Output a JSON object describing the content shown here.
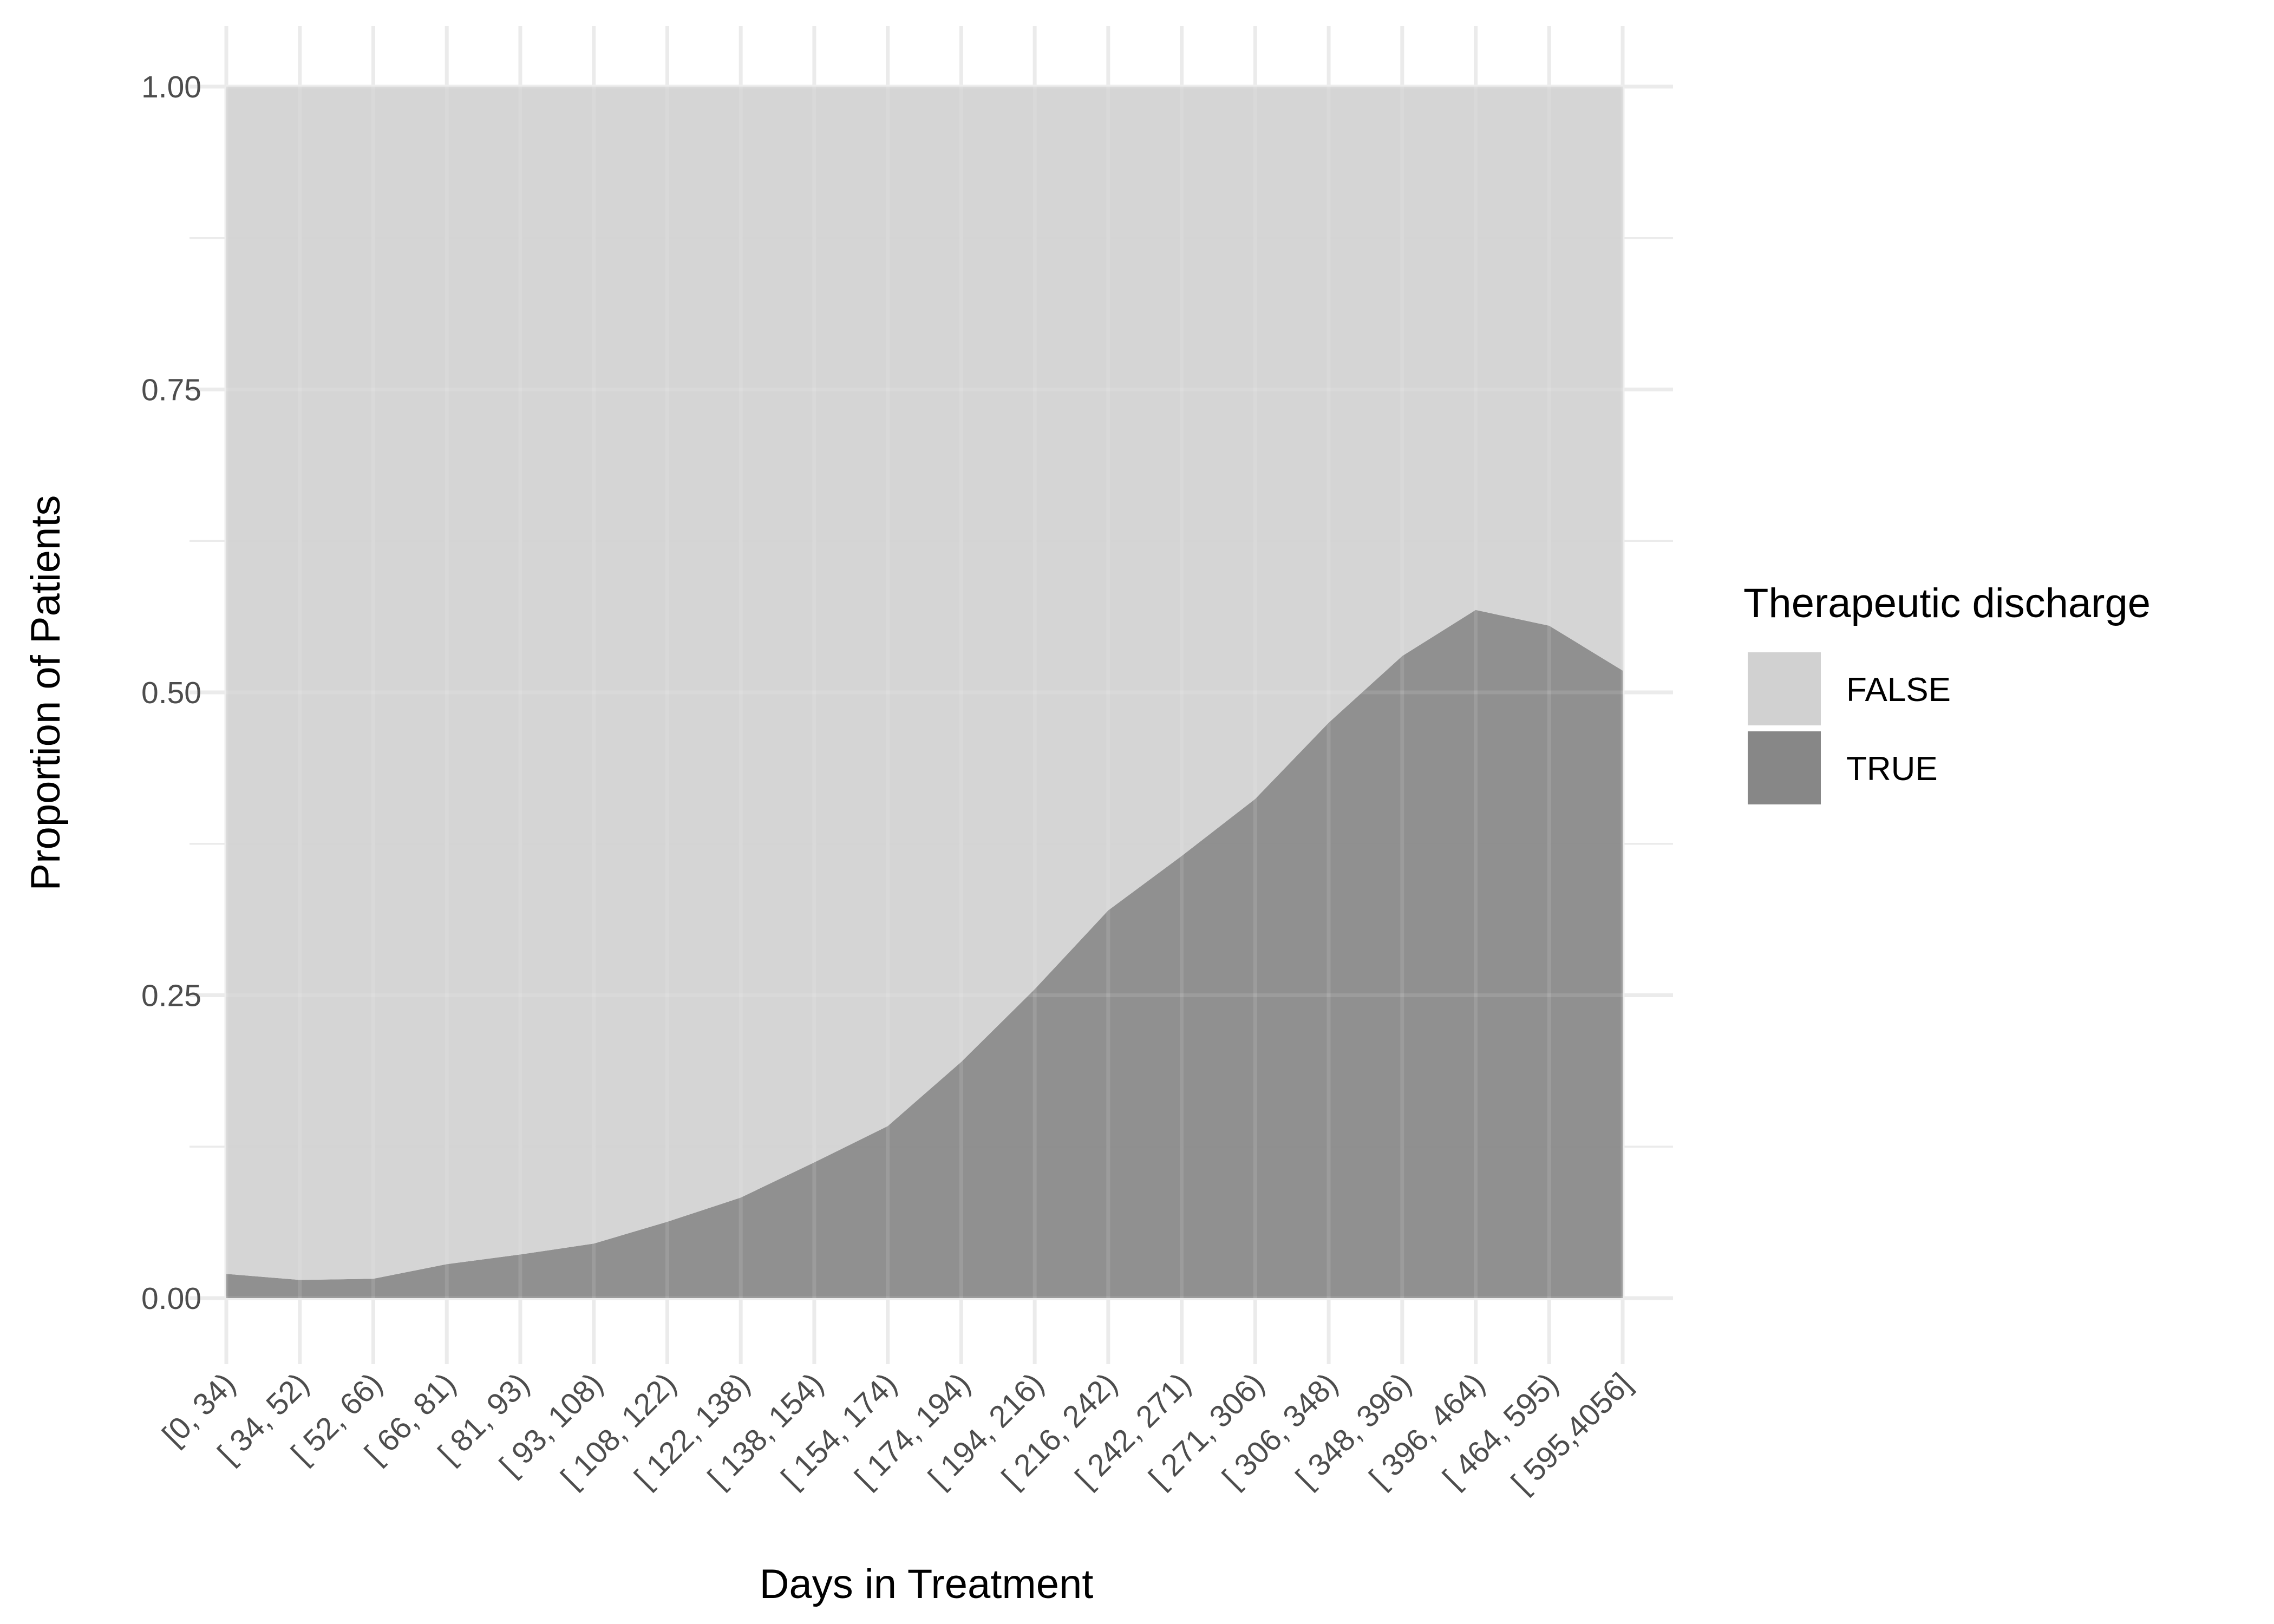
{
  "chart_data": {
    "type": "area",
    "stacked": true,
    "normalized": true,
    "xlabel": "Days in Treatment",
    "ylabel": "Proportion of Patients",
    "ylim": [
      0,
      1
    ],
    "y_ticks": [
      0,
      0.25,
      0.5,
      0.75,
      1
    ],
    "y_tick_labels": [
      "0.00",
      "0.25",
      "0.50",
      "0.75",
      "1.00"
    ],
    "categories": [
      "[0, 34)",
      "[ 34, 52)",
      "[ 52, 66)",
      "[ 66, 81)",
      "[ 81, 93)",
      "[ 93, 108)",
      "[ 108, 122)",
      "[ 122, 138)",
      "[ 138, 154)",
      "[ 154, 174)",
      "[ 174, 194)",
      "[ 194, 216)",
      "[ 216, 242)",
      "[ 242, 271)",
      "[ 271, 306)",
      "[ 306, 348)",
      "[ 348, 396)",
      "[ 396, 464)",
      "[ 464, 595)",
      "[ 595,4056]"
    ],
    "series": [
      {
        "name": "FALSE",
        "color": "#d1d1d1",
        "values": [
          0.98,
          0.985,
          0.984,
          0.972,
          0.964,
          0.955,
          0.937,
          0.917,
          0.888,
          0.858,
          0.805,
          0.745,
          0.68,
          0.635,
          0.588,
          0.525,
          0.47,
          0.432,
          0.445,
          0.482
        ]
      },
      {
        "name": "TRUE",
        "color": "#878787",
        "values": [
          0.02,
          0.015,
          0.016,
          0.028,
          0.036,
          0.045,
          0.063,
          0.083,
          0.112,
          0.142,
          0.195,
          0.255,
          0.32,
          0.365,
          0.412,
          0.475,
          0.53,
          0.568,
          0.555,
          0.518
        ]
      }
    ],
    "legend": {
      "title": "Therapeutic discharge",
      "position": "right"
    },
    "grid": true
  }
}
